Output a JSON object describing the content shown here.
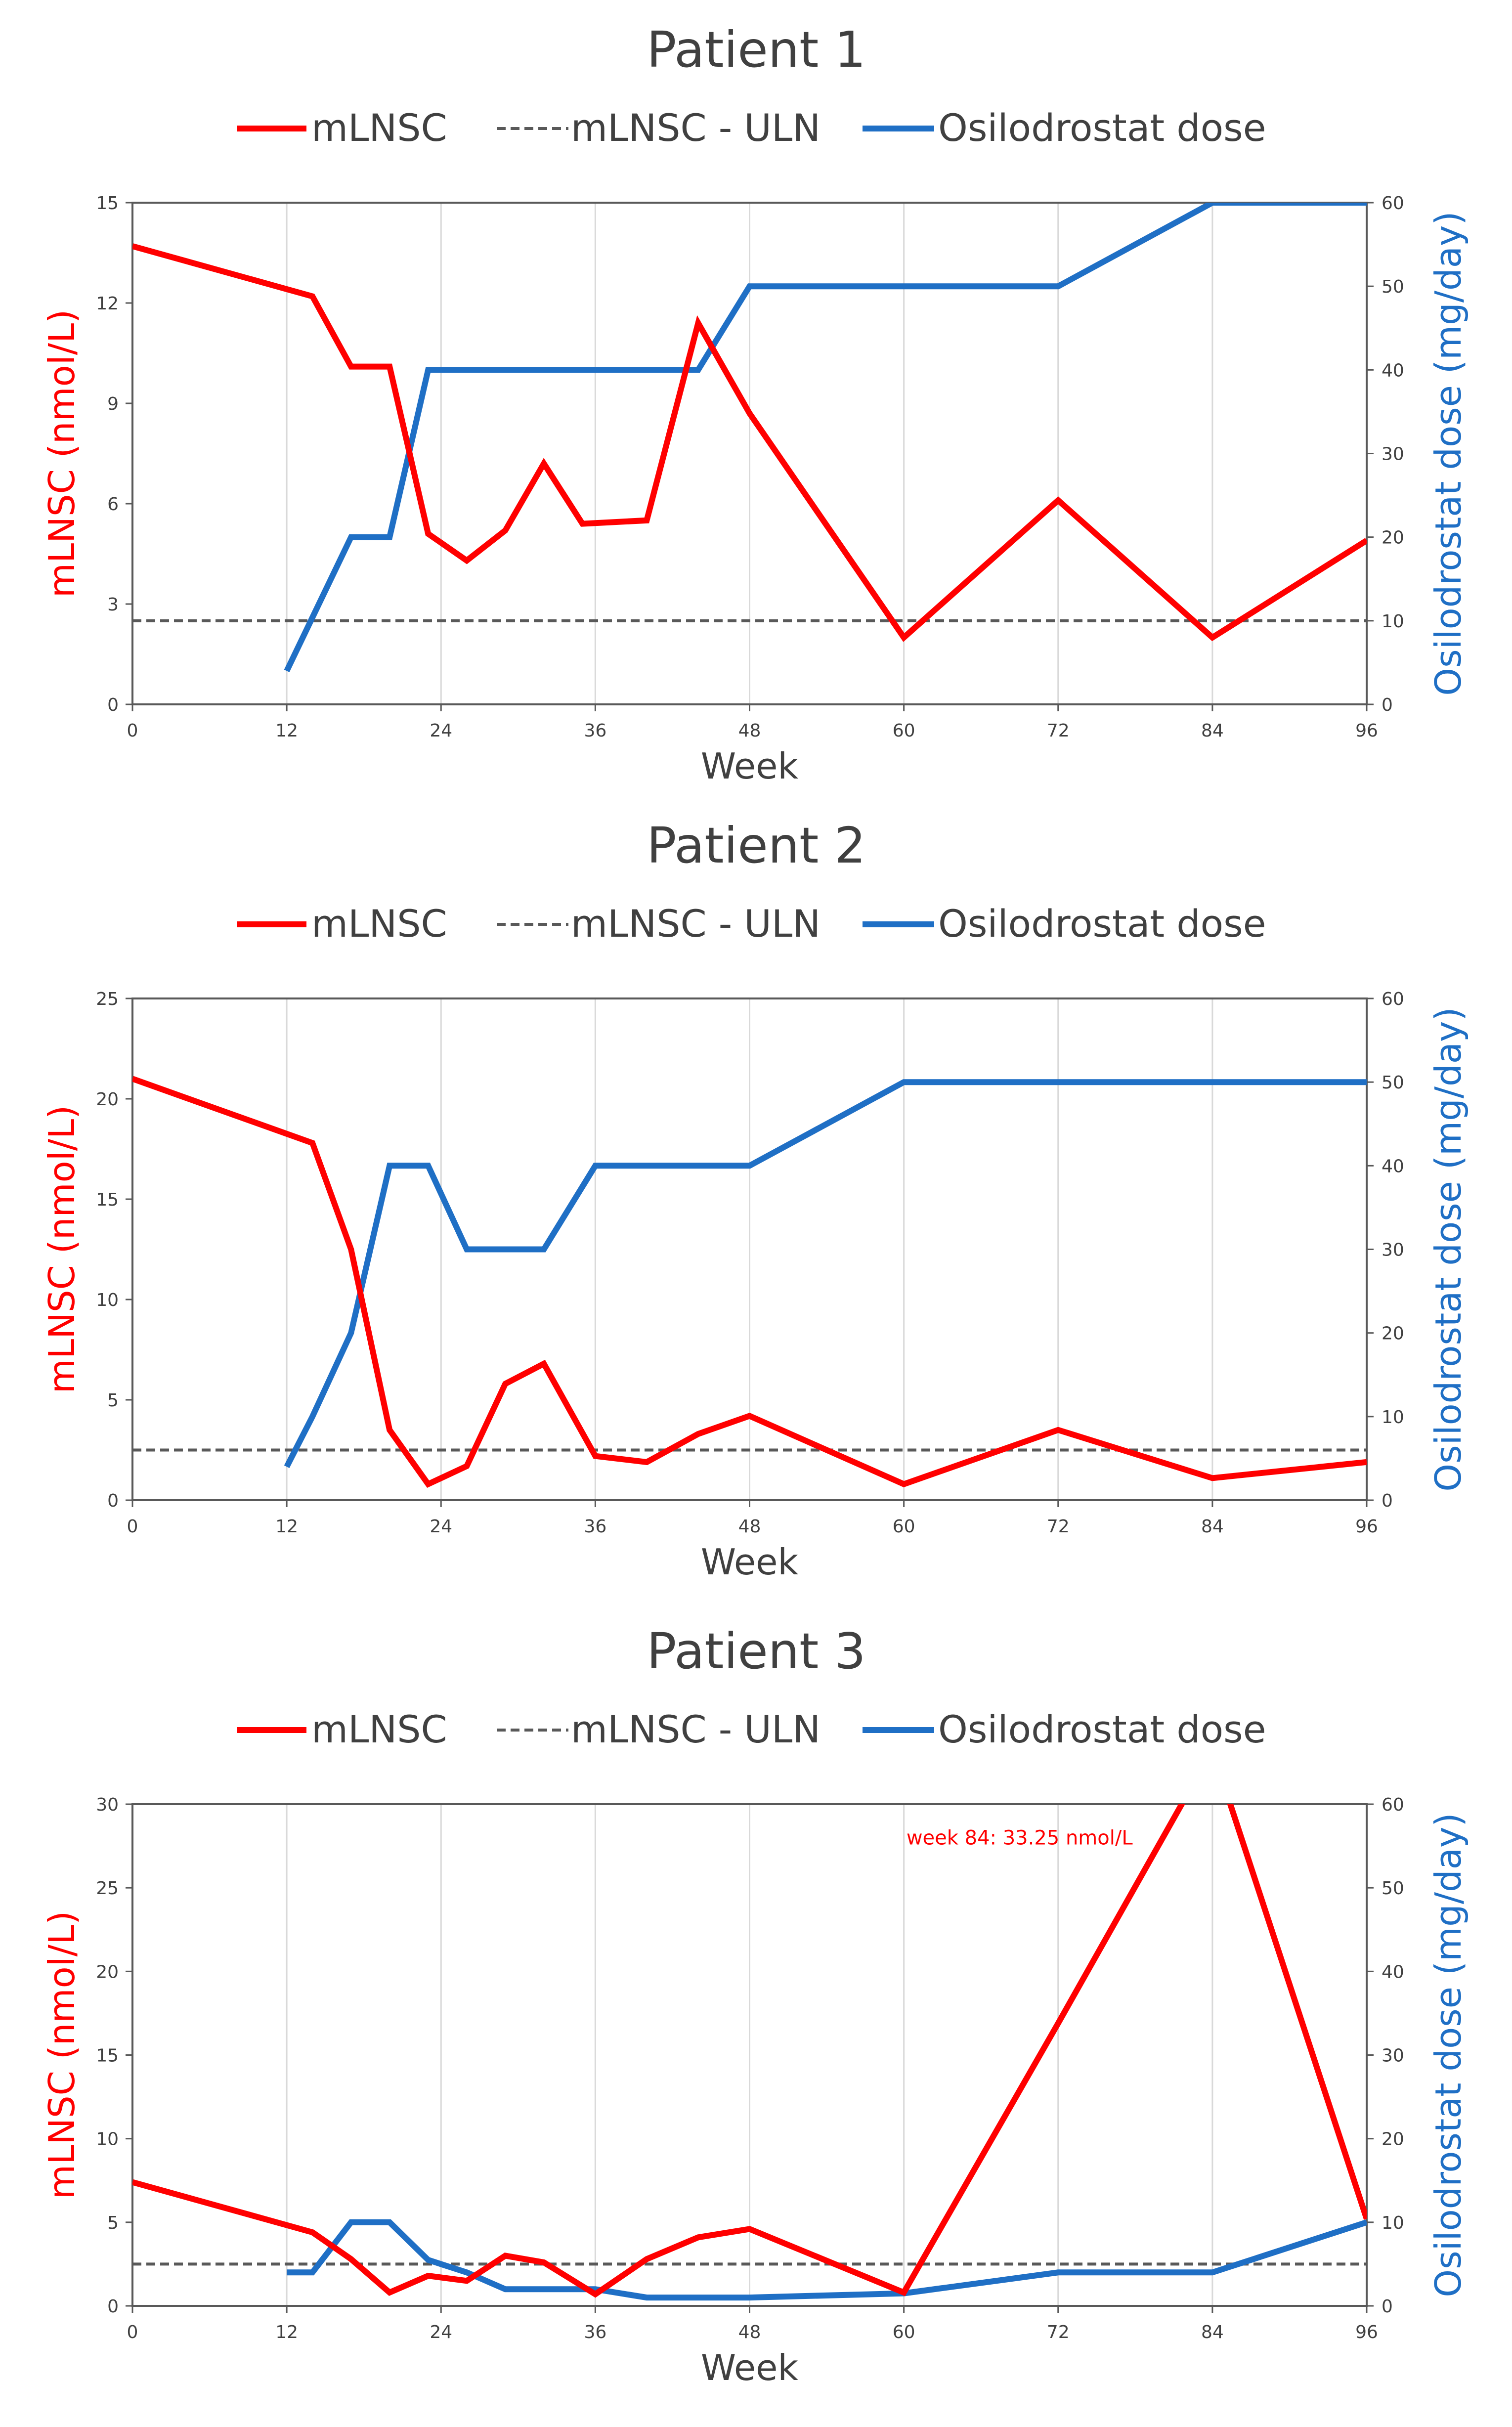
{
  "colors": {
    "mlnsc": "#ff0000",
    "uln": "#595959",
    "dose": "#1f6fc5",
    "grid": "#d9d9d9",
    "axis": "#595959"
  },
  "chart_data": [
    {
      "type": "line",
      "title": "Patient 1",
      "xlabel": "Week",
      "ylabel": "mLNSC (nmol/L)",
      "y2label": "Osilodrostat dose (mg/day)",
      "xlim": [
        0,
        96
      ],
      "xticks": [
        0,
        12,
        24,
        36,
        48,
        60,
        72,
        84,
        96
      ],
      "ylim": [
        0,
        15
      ],
      "yticks": [
        0,
        3,
        6,
        9,
        12,
        15
      ],
      "y2lim": [
        0,
        60
      ],
      "y2ticks": [
        0,
        10,
        20,
        30,
        40,
        50,
        60
      ],
      "grid": "vertical",
      "legend_position": "top",
      "legend": [
        "mLNSC",
        "mLNSC - ULN",
        "Osilodrostat dose"
      ],
      "uln": 2.5,
      "series": [
        {
          "name": "mLNSC",
          "axis": "left",
          "x": [
            0,
            14,
            17,
            20,
            23,
            26,
            29,
            32,
            35,
            40,
            44,
            48,
            60,
            72,
            84,
            96
          ],
          "y": [
            13.7,
            12.2,
            10.1,
            10.1,
            5.1,
            4.3,
            5.2,
            7.2,
            5.4,
            5.5,
            11.4,
            8.7,
            2.0,
            6.1,
            2.0,
            4.9
          ]
        },
        {
          "name": "Osilodrostat dose",
          "axis": "right",
          "x": [
            12,
            17,
            20,
            23,
            44,
            48,
            72,
            84,
            96
          ],
          "y": [
            4,
            20,
            20,
            40,
            40,
            50,
            50,
            60,
            60
          ]
        }
      ],
      "annotations": []
    },
    {
      "type": "line",
      "title": "Patient 2",
      "xlabel": "Week",
      "ylabel": "mLNSC (nmol/L)",
      "y2label": "Osilodrostat dose (mg/day)",
      "xlim": [
        0,
        96
      ],
      "xticks": [
        0,
        12,
        24,
        36,
        48,
        60,
        72,
        84,
        96
      ],
      "ylim": [
        0,
        25
      ],
      "yticks": [
        0,
        5,
        10,
        15,
        20,
        25
      ],
      "y2lim": [
        0,
        60
      ],
      "y2ticks": [
        0,
        10,
        20,
        30,
        40,
        50,
        60
      ],
      "grid": "vertical",
      "legend_position": "top",
      "legend": [
        "mLNSC",
        "mLNSC - ULN",
        "Osilodrostat dose"
      ],
      "uln": 2.5,
      "series": [
        {
          "name": "mLNSC",
          "axis": "left",
          "x": [
            0,
            14,
            17,
            20,
            23,
            26,
            29,
            32,
            36,
            40,
            44,
            48,
            60,
            72,
            84,
            96
          ],
          "y": [
            21.0,
            17.8,
            12.5,
            3.5,
            0.8,
            1.7,
            5.8,
            6.8,
            2.2,
            1.9,
            3.3,
            4.2,
            0.8,
            3.5,
            1.1,
            1.9
          ]
        },
        {
          "name": "Osilodrostat dose",
          "axis": "right",
          "x": [
            12,
            14,
            17,
            20,
            23,
            26,
            32,
            36,
            48,
            60,
            72,
            84,
            96
          ],
          "y": [
            4,
            10,
            20,
            40,
            40,
            30,
            30,
            40,
            40,
            50,
            50,
            50,
            50
          ]
        }
      ],
      "annotations": []
    },
    {
      "type": "line",
      "title": "Patient 3",
      "xlabel": "Week",
      "ylabel": "mLNSC (nmol/L)",
      "y2label": "Osilodrostat dose (mg/day)",
      "xlim": [
        0,
        96
      ],
      "xticks": [
        0,
        12,
        24,
        36,
        48,
        60,
        72,
        84,
        96
      ],
      "ylim": [
        0,
        30
      ],
      "yticks": [
        0,
        5,
        10,
        15,
        20,
        25,
        30
      ],
      "y2lim": [
        0,
        60
      ],
      "y2ticks": [
        0,
        10,
        20,
        30,
        40,
        50,
        60
      ],
      "grid": "vertical",
      "legend_position": "top",
      "legend": [
        "mLNSC",
        "mLNSC - ULN",
        "Osilodrostat dose"
      ],
      "uln": 2.5,
      "series": [
        {
          "name": "mLNSC",
          "axis": "left",
          "x": [
            0,
            14,
            17,
            20,
            23,
            26,
            29,
            32,
            36,
            40,
            44,
            48,
            60,
            72,
            84,
            96
          ],
          "y": [
            7.4,
            4.4,
            2.8,
            0.8,
            1.8,
            1.5,
            3.0,
            2.6,
            0.7,
            2.8,
            4.1,
            4.6,
            0.8,
            16.9,
            33.25,
            5.2
          ]
        },
        {
          "name": "Osilodrostat dose",
          "axis": "right",
          "x": [
            12,
            14,
            17,
            20,
            23,
            26,
            29,
            36,
            40,
            48,
            60,
            72,
            84,
            96
          ],
          "y": [
            4,
            4,
            10,
            10,
            5.5,
            4,
            2,
            2,
            1,
            1,
            1.5,
            4,
            4,
            10
          ]
        }
      ],
      "annotations": [
        {
          "text": "week 84: 33.25 nmol/L",
          "x": 69,
          "y": 28
        }
      ]
    }
  ]
}
